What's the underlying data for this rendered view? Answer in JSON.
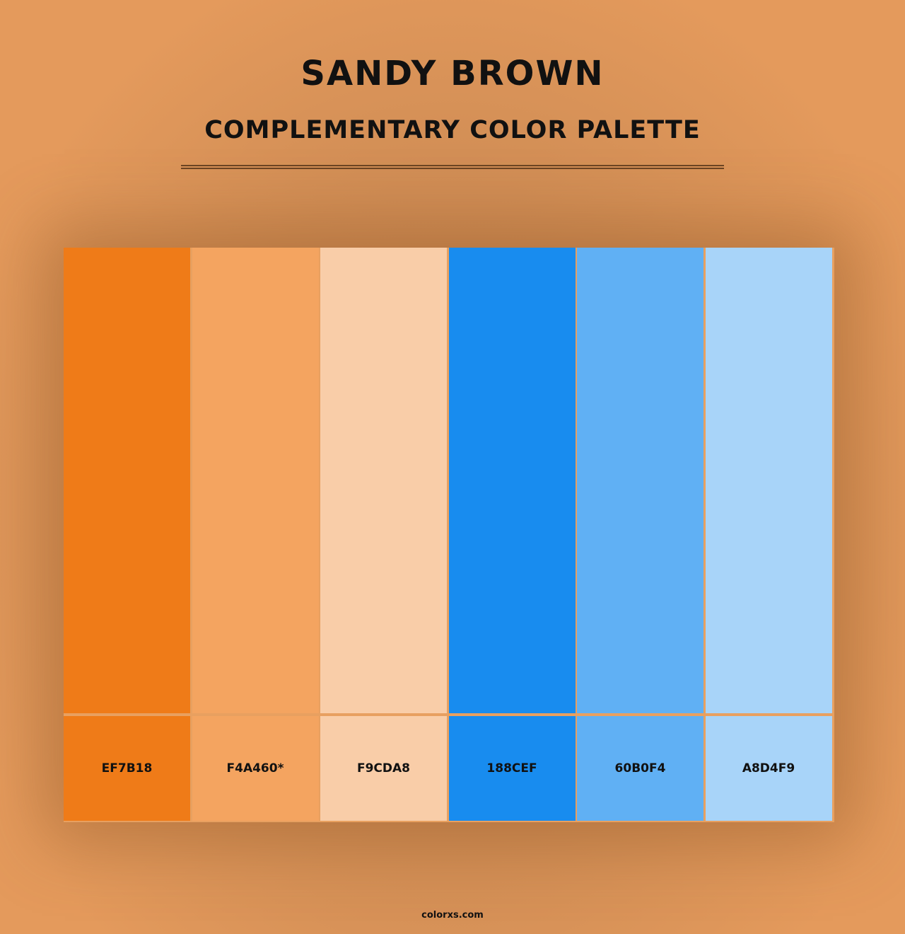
{
  "header": {
    "title": "SANDY BROWN",
    "subtitle": "COMPLEMENTARY COLOR PALETTE"
  },
  "swatches": [
    {
      "label": "EF7B18",
      "color": "#ef7b18"
    },
    {
      "label": "F4A460*",
      "color": "#f4a460"
    },
    {
      "label": "F9CDA8",
      "color": "#f9cda8"
    },
    {
      "label": "188CEF",
      "color": "#188cef"
    },
    {
      "label": "60B0F4",
      "color": "#60b0f4"
    },
    {
      "label": "A8D4F9",
      "color": "#a8d4f9"
    }
  ],
  "footer": {
    "text": "colorxs.com"
  }
}
